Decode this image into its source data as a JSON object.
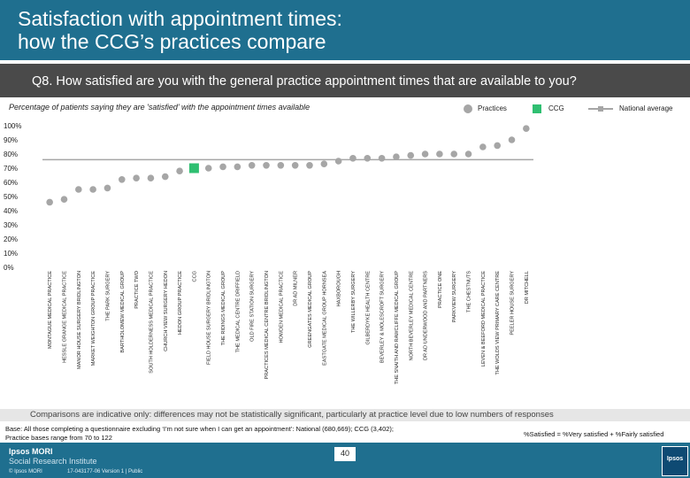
{
  "header": {
    "title_line1": "Satisfaction with appointment times:",
    "title_line2": "how the CCG’s practices compare",
    "question": "Q8. How satisfied are you with the general practice appointment times that are available to you?"
  },
  "legend": {
    "practices": "Practices",
    "ccg": "CCG",
    "national": "National average"
  },
  "colors": {
    "practice": "#a6a6a6",
    "ccg": "#2fbf71",
    "national": "#a6a6a6",
    "header": "#1f6f8f"
  },
  "chart_data": {
    "type": "scatter",
    "title": "Percentage of patients saying they are 'satisfied' with the appointment times available",
    "ylim": [
      0,
      100
    ],
    "yticks": [
      "0%",
      "10%",
      "20%",
      "30%",
      "40%",
      "50%",
      "60%",
      "70%",
      "80%",
      "90%",
      "100%"
    ],
    "national_average": 76,
    "categories": [
      "MONTAGUE MEDICAL PRACTICE",
      "HESSLE GRANGE MEDICAL PRACTICE",
      "MANOR HOUSE SURGERY BRIDLINGTON",
      "MARKET WEIGHTON GROUP PRACTICE",
      "THE PARK SURGERY",
      "BARTHOLOMEW MEDICAL GROUP",
      "PRACTICE TWO",
      "SOUTH HOLDERNESS MEDICAL PRACTICE",
      "CHURCH VIEW SURGERY HEDON",
      "HEDON GROUP PRACTICE",
      "CCG",
      "FIELD HOUSE SURGERY BRIDLINGTON",
      "THE RIDINGS MEDICAL GROUP",
      "THE MEDICAL CENTRE DRIFFIELD",
      "OLD FIRE STATION SURGERY",
      "PRACTICES MEDICAL CENTRE BRIDLINGTON",
      "HOWDEN MEDICAL PRACTICE",
      "DR AD MILNER",
      "GREENGATES MEDICAL GROUP",
      "EASTGATE MEDICAL GROUP HORNSEA",
      "HAXBOROUGH",
      "THE WILLERBY SURGERY",
      "GILBERDYKE HEALTH CENTRE",
      "BEVERLEY & MOLESCROFT SURGERY",
      "THE SNAITH AND RAWCLIFFE MEDICAL GROUP",
      "NORTH BEVERLEY MEDICAL CENTRE",
      "DR AD UNDERWOOD AND PARTNERS",
      "PRACTICE ONE",
      "PARKVIEW SURGERY",
      "THE CHESTNUTS",
      "LEVEN & BEEFORD MEDICAL PRACTICE",
      "THE WOLDS VIEW PRIMARY CARE CENTRE",
      "PEELER HOUSE SURGERY",
      "DR MITCHELL"
    ],
    "values": [
      46,
      48,
      55,
      55,
      56,
      62,
      63,
      63,
      64,
      68,
      70,
      70,
      71,
      71,
      72,
      72,
      72,
      72,
      72,
      73,
      75,
      77,
      77,
      77,
      78,
      79,
      80,
      80,
      80,
      80,
      85,
      86,
      90,
      98
    ],
    "ccg_category": "CCG"
  },
  "notes": {
    "comparison": "Comparisons are indicative only: differences may not be statistically significant, particularly at practice level due to low numbers of responses",
    "base_line1": "Base: All those completing a questionnaire excluding ‘I’m not sure when I can get an appointment’: National (680,669); CCG (3,402);",
    "base_line2": "Practice bases range from 70 to 122",
    "satisfied_def": "%Satisfied = %Very satisfied + %Fairly satisfied"
  },
  "footer": {
    "logo_line1": "Ipsos MORI",
    "logo_line2": "Social Research Institute",
    "copyright": "© Ipsos MORI",
    "version": "17-043177-06 Version 1 | Public",
    "page": "40",
    "brand": "Ipsos"
  }
}
